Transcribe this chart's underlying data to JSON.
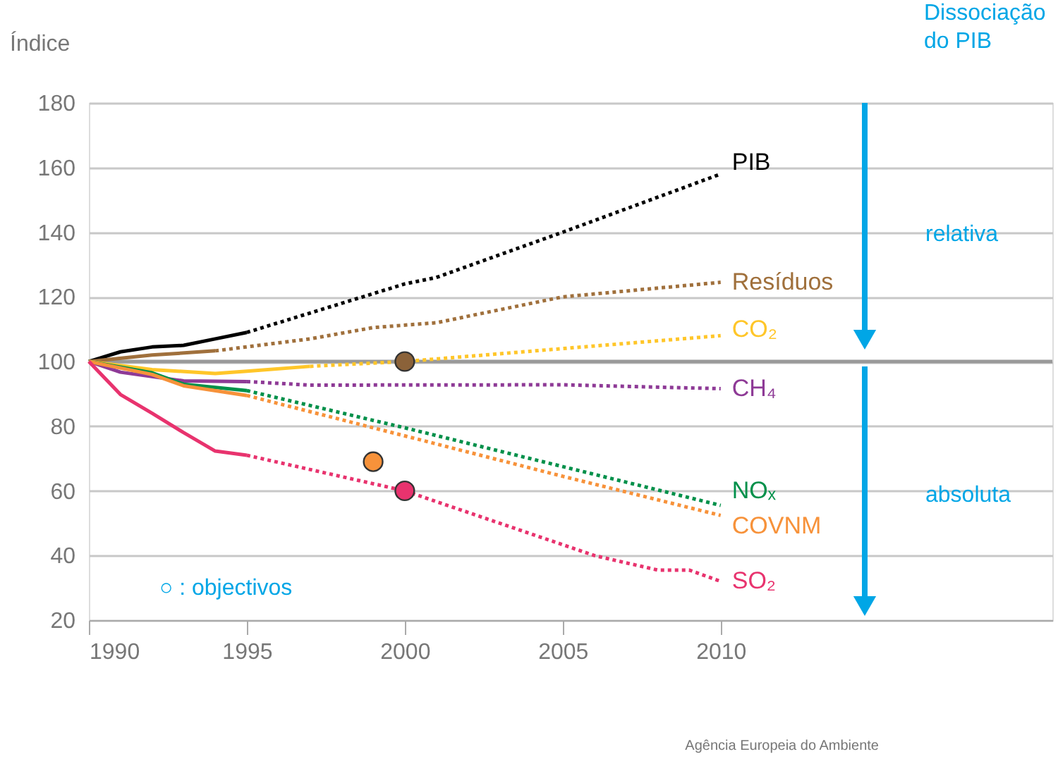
{
  "chart_data": {
    "type": "line",
    "ylabel": "Índice",
    "xlim": [
      1990,
      2020.5
    ],
    "xticks": [
      1990,
      1995,
      2000,
      2005,
      2010
    ],
    "ylim": [
      20,
      180
    ],
    "yticks": [
      20,
      40,
      60,
      80,
      100,
      120,
      140,
      160,
      180
    ],
    "grid": "y",
    "ref_lines": [
      {
        "axis": "y",
        "value": 100,
        "color": "#999999"
      }
    ],
    "annotations": [
      "○ : objectivos",
      "Dissociação\ndo PIB",
      "relativa",
      "absoluta",
      "Agência Europeia do Ambiente"
    ],
    "series": [
      {
        "color": "#000000",
        "line_style": "solid",
        "x": [
          1990,
          1991,
          1992,
          1993,
          1994,
          1995
        ],
        "values": [
          100,
          103,
          104.5,
          105,
          107,
          109
        ]
      },
      {
        "name": "PIB",
        "color": "#000000",
        "line_style": "dotted",
        "x": [
          1995,
          1998,
          2000,
          2001,
          2005,
          2010
        ],
        "values": [
          109,
          118,
          124,
          126,
          140,
          158
        ]
      },
      {
        "color": "#a0703c",
        "line_style": "solid",
        "x": [
          1990,
          1992,
          1994
        ],
        "values": [
          100,
          102,
          103.3
        ]
      },
      {
        "name": "Resíduos",
        "color": "#a0703c",
        "line_style": "dotted",
        "x": [
          1994,
          1997,
          1999,
          2001,
          2005,
          2010
        ],
        "values": [
          103.3,
          107,
          110.5,
          112,
          120,
          124.5
        ]
      },
      {
        "color": "#ffc629",
        "line_style": "solid",
        "x": [
          1990,
          1992,
          1994,
          1995,
          1997
        ],
        "values": [
          100,
          97.5,
          96.3,
          97,
          98.5
        ]
      },
      {
        "name": "CO₂",
        "color": "#ffc629",
        "line_style": "dotted",
        "x": [
          1997,
          2000,
          2005,
          2010
        ],
        "values": [
          98.5,
          100,
          104,
          108
        ]
      },
      {
        "color": "#8e3a96",
        "line_style": "solid",
        "x": [
          1990,
          1991,
          1993,
          1995
        ],
        "values": [
          100,
          96.7,
          94,
          93.8
        ]
      },
      {
        "name": "CH₄",
        "color": "#8e3a96",
        "line_style": "dotted",
        "x": [
          1995,
          1997,
          2005,
          2010
        ],
        "values": [
          93.8,
          92.7,
          92.8,
          91.6
        ]
      },
      {
        "color": "#00904a",
        "line_style": "solid",
        "x": [
          1990,
          1992,
          1993,
          1995
        ],
        "values": [
          100,
          96.5,
          93,
          91
        ]
      },
      {
        "name": "NOₓ",
        "color": "#00904a",
        "line_style": "dotted",
        "x": [
          1995,
          2000,
          2005,
          2010
        ],
        "values": [
          91,
          79.5,
          67.5,
          55.5
        ]
      },
      {
        "color": "#f7923a",
        "line_style": "solid",
        "x": [
          1990,
          1992,
          1993,
          1995
        ],
        "values": [
          100,
          96,
          92.5,
          89.5
        ]
      },
      {
        "name": "COVNM",
        "color": "#f7923a",
        "line_style": "dotted",
        "x": [
          1995,
          2000,
          2005,
          2010
        ],
        "values": [
          89.5,
          77,
          64.5,
          52.4
        ]
      },
      {
        "color": "#e8336e",
        "line_style": "solid",
        "x": [
          1990,
          1991,
          1992,
          1993,
          1994,
          1995
        ],
        "values": [
          100,
          89.8,
          84,
          78,
          72.3,
          71
        ]
      },
      {
        "name": "SO₂",
        "color": "#e8336e",
        "line_style": "dotted",
        "x": [
          1995,
          2000,
          2003,
          2006,
          2008,
          2009,
          2010
        ],
        "values": [
          71,
          60,
          50,
          40,
          35.5,
          35.5,
          32
        ]
      },
      {
        "type": "scatter",
        "marker": "circle",
        "color": "#8b6239",
        "x": [
          2000
        ],
        "values": [
          100
        ]
      },
      {
        "type": "scatter",
        "marker": "circle",
        "color": "#f7923a",
        "x": [
          1999
        ],
        "values": [
          69
        ]
      },
      {
        "type": "scatter",
        "marker": "circle",
        "color": "#e8336e",
        "x": [
          2000
        ],
        "values": [
          60
        ]
      }
    ]
  }
}
